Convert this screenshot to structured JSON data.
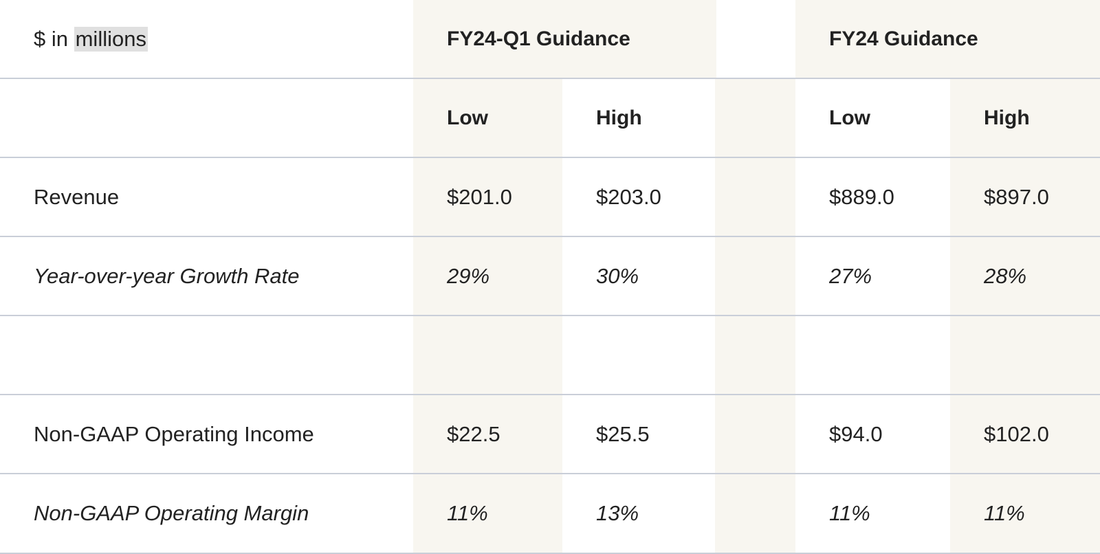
{
  "table": {
    "units_prefix": "$ in",
    "units_highlight": "millions",
    "group_headers": [
      "FY24-Q1 Guidance",
      "FY24 Guidance"
    ],
    "sub_headers": [
      "Low",
      "High",
      "Low",
      "High"
    ],
    "rows": [
      {
        "label": "Revenue",
        "values": [
          "$201.0",
          "$203.0",
          "$889.0",
          "$897.0"
        ],
        "italic": false
      },
      {
        "label": "Year-over-year Growth Rate",
        "values": [
          "29%",
          "30%",
          "27%",
          "28%"
        ],
        "italic": true
      },
      {
        "label": "",
        "values": [
          "",
          "",
          "",
          ""
        ],
        "italic": false
      },
      {
        "label": "Non-GAAP Operating Income",
        "values": [
          "$22.5",
          "$25.5",
          "$94.0",
          "$102.0"
        ],
        "italic": false
      },
      {
        "label": "Non-GAAP Operating Margin",
        "values": [
          "11%",
          "13%",
          "11%",
          "11%"
        ],
        "italic": true
      }
    ]
  },
  "colors": {
    "shaded_column": "#f8f6f0",
    "row_divider": "#c9ced8",
    "text": "#222222",
    "highlight": "#e0e0e0"
  }
}
